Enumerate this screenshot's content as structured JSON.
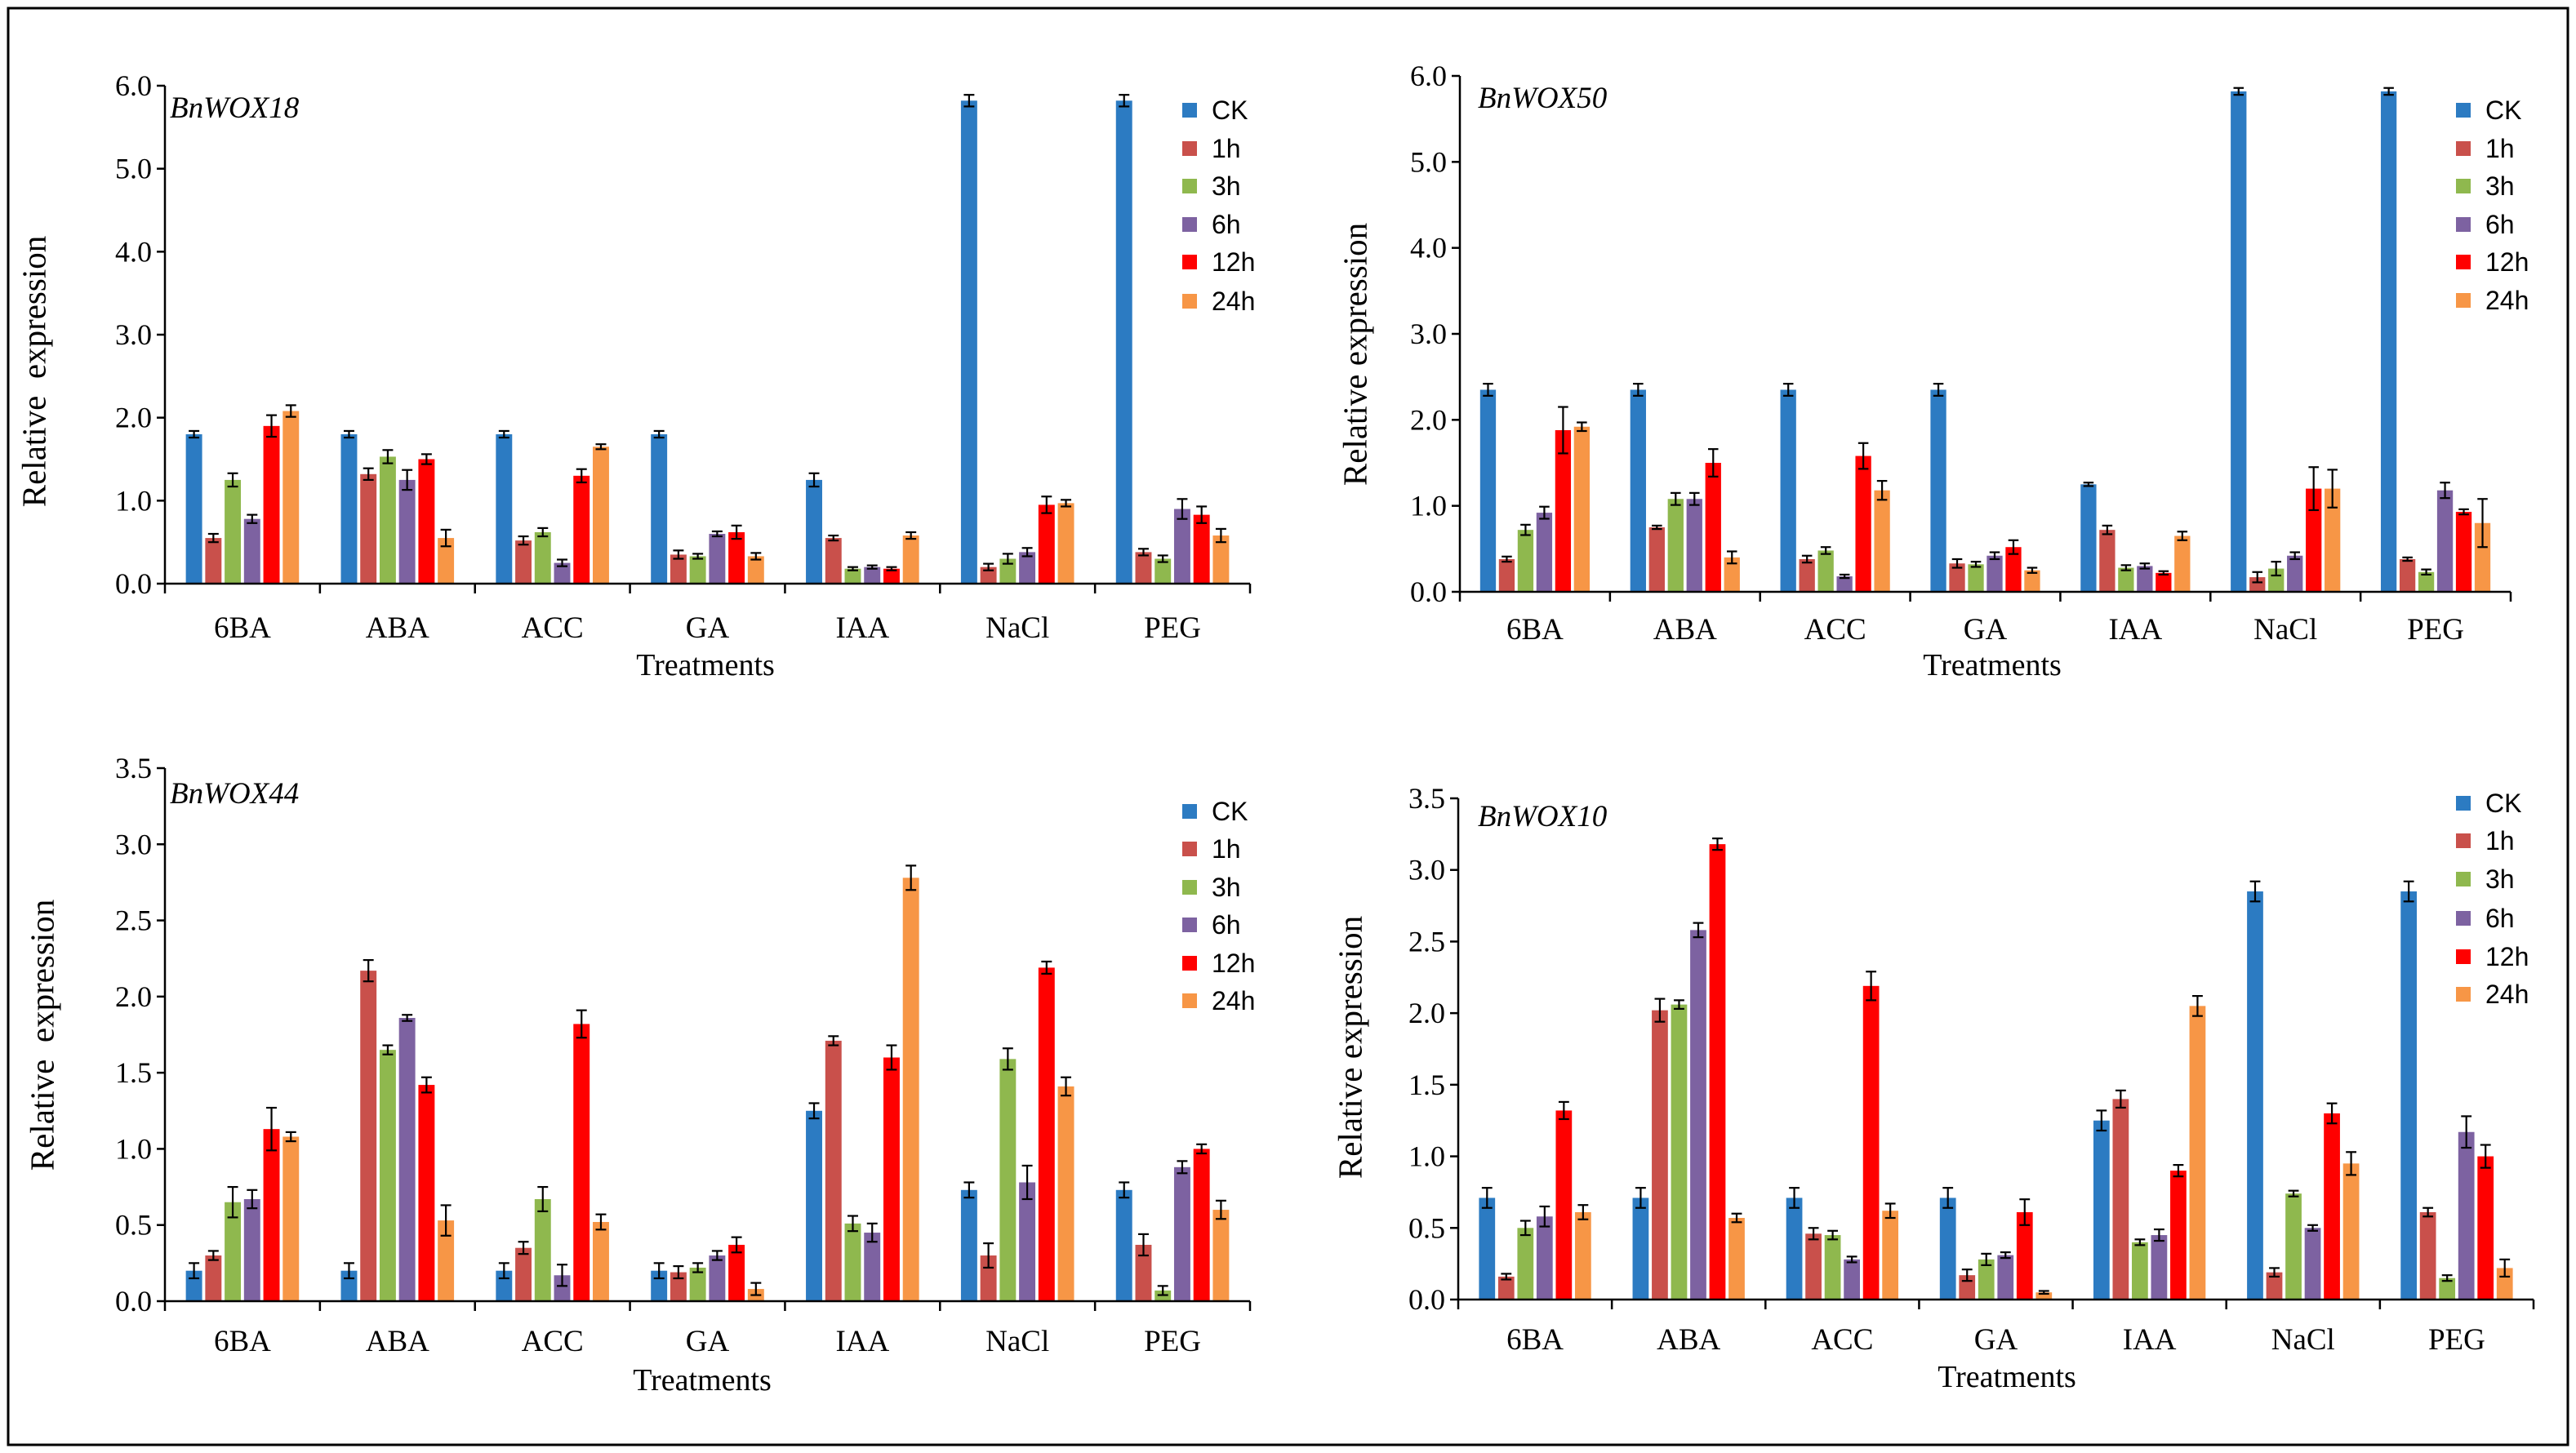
{
  "chart_data": [
    {
      "type": "bar",
      "title": "BnWOX18",
      "xlabel": "Treatments",
      "ylabel": "Relative  expression",
      "ylim": [
        0,
        6
      ],
      "yticks": [
        "0.0",
        "1.0",
        "2.0",
        "3.0",
        "4.0",
        "5.0",
        "6.0"
      ],
      "categories": [
        "6BA",
        "ABA",
        "ACC",
        "GA",
        "IAA",
        "NaCl",
        "PEG"
      ],
      "series": [
        {
          "name": "CK",
          "color": "#2C7BC2",
          "values": [
            1.8,
            1.8,
            1.8,
            1.8,
            1.25,
            5.82,
            5.82
          ],
          "errors": [
            0.04,
            0.04,
            0.04,
            0.04,
            0.08,
            0.07,
            0.07
          ]
        },
        {
          "name": "1h",
          "color": "#C9504B",
          "values": [
            0.55,
            1.32,
            0.52,
            0.35,
            0.55,
            0.2,
            0.38
          ],
          "errors": [
            0.05,
            0.07,
            0.05,
            0.05,
            0.03,
            0.04,
            0.04
          ]
        },
        {
          "name": "3h",
          "color": "#8FB84E",
          "values": [
            1.25,
            1.53,
            0.62,
            0.33,
            0.18,
            0.3,
            0.3
          ],
          "errors": [
            0.08,
            0.08,
            0.05,
            0.03,
            0.02,
            0.06,
            0.04
          ]
        },
        {
          "name": "6h",
          "color": "#7D62A1",
          "values": [
            0.78,
            1.25,
            0.25,
            0.6,
            0.2,
            0.38,
            0.9
          ],
          "errors": [
            0.05,
            0.12,
            0.04,
            0.03,
            0.02,
            0.05,
            0.12
          ]
        },
        {
          "name": "12h",
          "color": "#FF0000",
          "values": [
            1.9,
            1.5,
            1.3,
            0.62,
            0.18,
            0.95,
            0.83
          ],
          "errors": [
            0.13,
            0.06,
            0.08,
            0.08,
            0.02,
            0.1,
            0.1
          ]
        },
        {
          "name": "24h",
          "color": "#F79646",
          "values": [
            2.08,
            0.55,
            1.65,
            0.33,
            0.58,
            0.97,
            0.58
          ],
          "errors": [
            0.07,
            0.1,
            0.03,
            0.04,
            0.04,
            0.04,
            0.08
          ]
        }
      ]
    },
    {
      "type": "bar",
      "title": "BnWOX50",
      "xlabel": "Treatments",
      "ylabel": "Relative expression",
      "ylim": [
        0,
        6
      ],
      "yticks": [
        "0.0",
        "1.0",
        "2.0",
        "3.0",
        "4.0",
        "5.0",
        "6.0"
      ],
      "categories": [
        "6BA",
        "ABA",
        "ACC",
        "GA",
        "IAA",
        "NaCl",
        "PEG"
      ],
      "series": [
        {
          "name": "CK",
          "color": "#2C7BC2",
          "values": [
            2.35,
            2.35,
            2.35,
            2.35,
            1.25,
            5.82,
            5.82
          ],
          "errors": [
            0.07,
            0.07,
            0.07,
            0.07,
            0.02,
            0.04,
            0.04
          ]
        },
        {
          "name": "1h",
          "color": "#C9504B",
          "values": [
            0.38,
            0.75,
            0.38,
            0.33,
            0.72,
            0.17,
            0.38
          ],
          "errors": [
            0.03,
            0.02,
            0.04,
            0.05,
            0.05,
            0.06,
            0.02
          ]
        },
        {
          "name": "3h",
          "color": "#8FB84E",
          "values": [
            0.72,
            1.08,
            0.48,
            0.32,
            0.28,
            0.27,
            0.23
          ],
          "errors": [
            0.06,
            0.07,
            0.04,
            0.03,
            0.03,
            0.08,
            0.03
          ]
        },
        {
          "name": "6h",
          "color": "#7D62A1",
          "values": [
            0.92,
            1.08,
            0.18,
            0.42,
            0.3,
            0.42,
            1.18
          ],
          "errors": [
            0.07,
            0.07,
            0.02,
            0.04,
            0.03,
            0.04,
            0.09
          ]
        },
        {
          "name": "12h",
          "color": "#FF0000",
          "values": [
            1.88,
            1.5,
            1.58,
            0.52,
            0.22,
            1.2,
            0.93
          ],
          "errors": [
            0.27,
            0.16,
            0.15,
            0.08,
            0.02,
            0.25,
            0.03
          ]
        },
        {
          "name": "24h",
          "color": "#F79646",
          "values": [
            1.92,
            0.4,
            1.18,
            0.25,
            0.65,
            1.2,
            0.8
          ],
          "errors": [
            0.05,
            0.07,
            0.11,
            0.03,
            0.05,
            0.22,
            0.28
          ]
        }
      ]
    },
    {
      "type": "bar",
      "title": "BnWOX44",
      "xlabel": "Treatments",
      "ylabel": "Relative  expression",
      "ylim": [
        0,
        3.5
      ],
      "yticks": [
        "0.0",
        "0.5",
        "1.0",
        "1.5",
        "2.0",
        "2.5",
        "3.0",
        "3.5"
      ],
      "categories": [
        "6BA",
        "ABA",
        "ACC",
        "GA",
        "IAA",
        "NaCl",
        "PEG"
      ],
      "series": [
        {
          "name": "CK",
          "color": "#2C7BC2",
          "values": [
            0.2,
            0.2,
            0.2,
            0.2,
            1.25,
            0.73,
            0.73
          ],
          "errors": [
            0.05,
            0.05,
            0.05,
            0.05,
            0.05,
            0.05,
            0.05
          ]
        },
        {
          "name": "1h",
          "color": "#C9504B",
          "values": [
            0.3,
            2.17,
            0.35,
            0.19,
            1.71,
            0.3,
            0.37
          ],
          "errors": [
            0.03,
            0.07,
            0.04,
            0.04,
            0.03,
            0.08,
            0.07
          ]
        },
        {
          "name": "3h",
          "color": "#8FB84E",
          "values": [
            0.65,
            1.65,
            0.67,
            0.22,
            0.51,
            1.59,
            0.07
          ],
          "errors": [
            0.1,
            0.03,
            0.08,
            0.03,
            0.05,
            0.07,
            0.03
          ]
        },
        {
          "name": "6h",
          "color": "#7D62A1",
          "values": [
            0.67,
            1.86,
            0.17,
            0.3,
            0.45,
            0.78,
            0.88
          ],
          "errors": [
            0.06,
            0.02,
            0.07,
            0.03,
            0.06,
            0.11,
            0.04
          ]
        },
        {
          "name": "12h",
          "color": "#FF0000",
          "values": [
            1.13,
            1.42,
            1.82,
            0.37,
            1.6,
            2.19,
            1.0
          ],
          "errors": [
            0.14,
            0.05,
            0.09,
            0.05,
            0.08,
            0.04,
            0.03
          ]
        },
        {
          "name": "24h",
          "color": "#F79646",
          "values": [
            1.08,
            0.53,
            0.52,
            0.08,
            2.78,
            1.41,
            0.6
          ],
          "errors": [
            0.03,
            0.1,
            0.05,
            0.04,
            0.08,
            0.06,
            0.06
          ]
        }
      ]
    },
    {
      "type": "bar",
      "title": "BnWOX10",
      "xlabel": "Treatments",
      "ylabel": "Relative expression",
      "ylim": [
        0,
        3.5
      ],
      "yticks": [
        "0.0",
        "0.5",
        "1.0",
        "1.5",
        "2.0",
        "2.5",
        "3.0",
        "3.5"
      ],
      "categories": [
        "6BA",
        "ABA",
        "ACC",
        "GA",
        "IAA",
        "NaCl",
        "PEG"
      ],
      "series": [
        {
          "name": "CK",
          "color": "#2C7BC2",
          "values": [
            0.71,
            0.71,
            0.71,
            0.71,
            1.25,
            2.85,
            2.85
          ],
          "errors": [
            0.07,
            0.07,
            0.07,
            0.07,
            0.07,
            0.07,
            0.07
          ]
        },
        {
          "name": "1h",
          "color": "#C9504B",
          "values": [
            0.16,
            2.02,
            0.46,
            0.17,
            1.4,
            0.19,
            0.61
          ],
          "errors": [
            0.02,
            0.08,
            0.04,
            0.04,
            0.06,
            0.03,
            0.03
          ]
        },
        {
          "name": "3h",
          "color": "#8FB84E",
          "values": [
            0.5,
            2.06,
            0.45,
            0.28,
            0.4,
            0.74,
            0.15
          ],
          "errors": [
            0.05,
            0.03,
            0.03,
            0.04,
            0.02,
            0.02,
            0.02
          ]
        },
        {
          "name": "6h",
          "color": "#7D62A1",
          "values": [
            0.58,
            2.58,
            0.28,
            0.31,
            0.45,
            0.5,
            1.17
          ],
          "errors": [
            0.07,
            0.05,
            0.02,
            0.02,
            0.04,
            0.02,
            0.11
          ]
        },
        {
          "name": "12h",
          "color": "#FF0000",
          "values": [
            1.32,
            3.18,
            2.19,
            0.61,
            0.9,
            1.3,
            1.0
          ],
          "errors": [
            0.06,
            0.04,
            0.1,
            0.09,
            0.04,
            0.07,
            0.08
          ]
        },
        {
          "name": "24h",
          "color": "#F79646",
          "values": [
            0.61,
            0.57,
            0.62,
            0.05,
            2.05,
            0.95,
            0.22
          ],
          "errors": [
            0.05,
            0.03,
            0.05,
            0.01,
            0.07,
            0.08,
            0.06
          ]
        }
      ]
    }
  ]
}
